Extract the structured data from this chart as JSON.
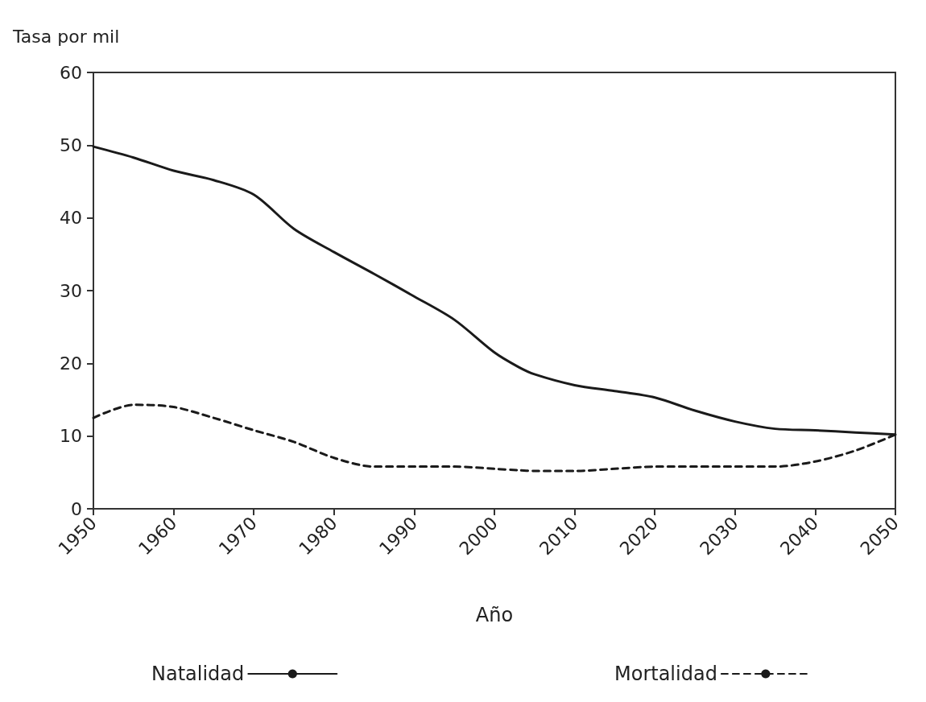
{
  "chart_data": {
    "type": "line",
    "ylabel": "Tasa por mil",
    "xlabel": "Año",
    "xlim": [
      1950,
      2050
    ],
    "xticks": [
      1950,
      1960,
      1970,
      1980,
      1990,
      2000,
      2010,
      2020,
      2030,
      2040,
      2050
    ],
    "ylim": [
      0,
      60
    ],
    "yticks": [
      0,
      10,
      20,
      30,
      40,
      50,
      60
    ],
    "grid": false,
    "legend": "bottom",
    "marker": "none",
    "x": [
      1950,
      1955,
      1960,
      1965,
      1970,
      1975,
      1980,
      1985,
      1990,
      1995,
      2000,
      2003,
      2005,
      2010,
      2015,
      2020,
      2025,
      2030,
      2035,
      2040,
      2045,
      2050
    ],
    "series": [
      {
        "name": "Natalidad",
        "color": "#1a1a1a",
        "line_style": "solid",
        "values": [
          49.8,
          48.3,
          46.5,
          45.2,
          43.2,
          38.5,
          35.3,
          32.3,
          29.2,
          26,
          21.5,
          19.5,
          18.5,
          17,
          16.2,
          15.3,
          13.5,
          12,
          11,
          10.8,
          10.5,
          10.2
        ]
      },
      {
        "name": "Mortalidad",
        "color": "#1a1a1a",
        "line_style": "dashed",
        "values": [
          12.5,
          14.3,
          14,
          12.5,
          10.8,
          9.2,
          7,
          5.8,
          5.8,
          5.8,
          5.5,
          5.3,
          5.2,
          5.2,
          5.5,
          5.8,
          5.8,
          5.8,
          5.8,
          6.5,
          8,
          10.2
        ]
      }
    ]
  }
}
